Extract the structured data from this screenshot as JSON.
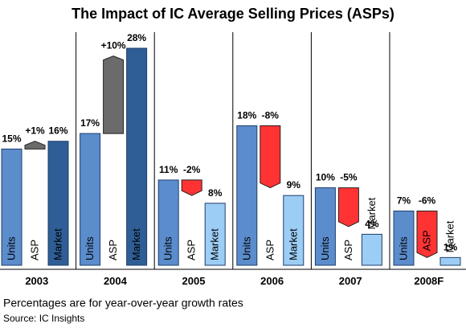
{
  "chart_data": {
    "type": "waterfall-group",
    "title": "The Impact of IC Average Selling Prices (ASPs)",
    "categories": [
      "2003",
      "2004",
      "2005",
      "2006",
      "2007",
      "2008F"
    ],
    "series": [
      {
        "name": "Units",
        "color": "#5b8ccc",
        "values": [
          15,
          17,
          11,
          18,
          10,
          7
        ],
        "value_labels": [
          "15%",
          "17%",
          "11%",
          "18%",
          "10%",
          "7%"
        ]
      },
      {
        "name": "ASP",
        "colors": [
          "#6b6b6b",
          "#6b6b6b",
          "#ff3333",
          "#ff3333",
          "#ff3333",
          "#ff3333"
        ],
        "values": [
          1,
          10,
          -2,
          -8,
          -5,
          -6
        ],
        "value_labels": [
          "+1%",
          "+10%",
          "-2%",
          "-8%",
          "-5%",
          "-6%"
        ]
      },
      {
        "name": "Market",
        "colors": [
          "#2f5e96",
          "#2f5e96",
          "#9ccdf5",
          "#9ccdf5",
          "#9ccdf5",
          "#9ccdf5"
        ],
        "values": [
          16,
          28,
          8,
          9,
          4,
          1
        ],
        "value_labels": [
          "16%",
          "28%",
          "8%",
          "9%",
          "4%",
          "1%"
        ]
      }
    ],
    "note": "Percentages are for year-over-year growth rates",
    "source": "Source:  IC Insights"
  }
}
